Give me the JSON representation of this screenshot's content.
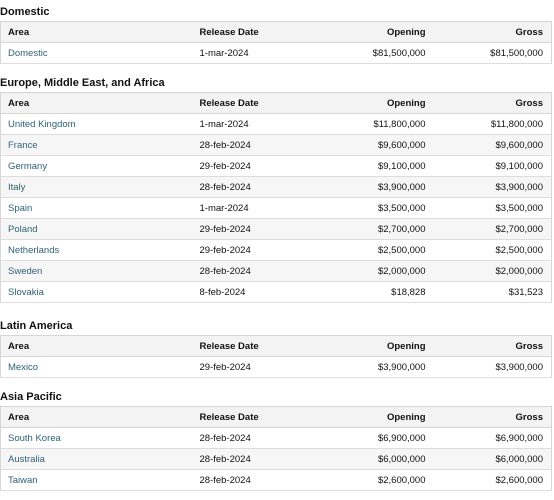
{
  "columns": {
    "area": "Area",
    "release_date": "Release Date",
    "opening": "Opening",
    "gross": "Gross"
  },
  "regions": [
    {
      "title": "Domestic",
      "rows": [
        {
          "area": "Domestic",
          "release_date": "1-mar-2024",
          "opening": "$81,500,000",
          "gross": "$81,500,000"
        }
      ]
    },
    {
      "title": "Europe, Middle East, and Africa",
      "rows": [
        {
          "area": "United Kingdom",
          "release_date": "1-mar-2024",
          "opening": "$11,800,000",
          "gross": "$11,800,000"
        },
        {
          "area": "France",
          "release_date": "28-feb-2024",
          "opening": "$9,600,000",
          "gross": "$9,600,000"
        },
        {
          "area": "Germany",
          "release_date": "29-feb-2024",
          "opening": "$9,100,000",
          "gross": "$9,100,000"
        },
        {
          "area": "Italy",
          "release_date": "28-feb-2024",
          "opening": "$3,900,000",
          "gross": "$3,900,000"
        },
        {
          "area": "Spain",
          "release_date": "1-mar-2024",
          "opening": "$3,500,000",
          "gross": "$3,500,000"
        },
        {
          "area": "Poland",
          "release_date": "29-feb-2024",
          "opening": "$2,700,000",
          "gross": "$2,700,000"
        },
        {
          "area": "Netherlands",
          "release_date": "29-feb-2024",
          "opening": "$2,500,000",
          "gross": "$2,500,000"
        },
        {
          "area": "Sweden",
          "release_date": "28-feb-2024",
          "opening": "$2,000,000",
          "gross": "$2,000,000"
        },
        {
          "area": "Slovakia",
          "release_date": "8-feb-2024",
          "opening": "$18,828",
          "gross": "$31,523"
        }
      ]
    },
    {
      "title": "Latin America",
      "rows": [
        {
          "area": "Mexico",
          "release_date": "29-feb-2024",
          "opening": "$3,900,000",
          "gross": "$3,900,000"
        }
      ]
    },
    {
      "title": "Asia Pacific",
      "rows": [
        {
          "area": "South Korea",
          "release_date": "28-feb-2024",
          "opening": "$6,900,000",
          "gross": "$6,900,000"
        },
        {
          "area": "Australia",
          "release_date": "28-feb-2024",
          "opening": "$6,000,000",
          "gross": "$6,000,000"
        },
        {
          "area": "Taiwan",
          "release_date": "28-feb-2024",
          "opening": "$2,600,000",
          "gross": "$2,600,000"
        }
      ]
    }
  ],
  "colors": {
    "area_link": "#2f6279",
    "header_bg": "#f3f3f3",
    "alt_row_bg": "#f6f6f6"
  }
}
